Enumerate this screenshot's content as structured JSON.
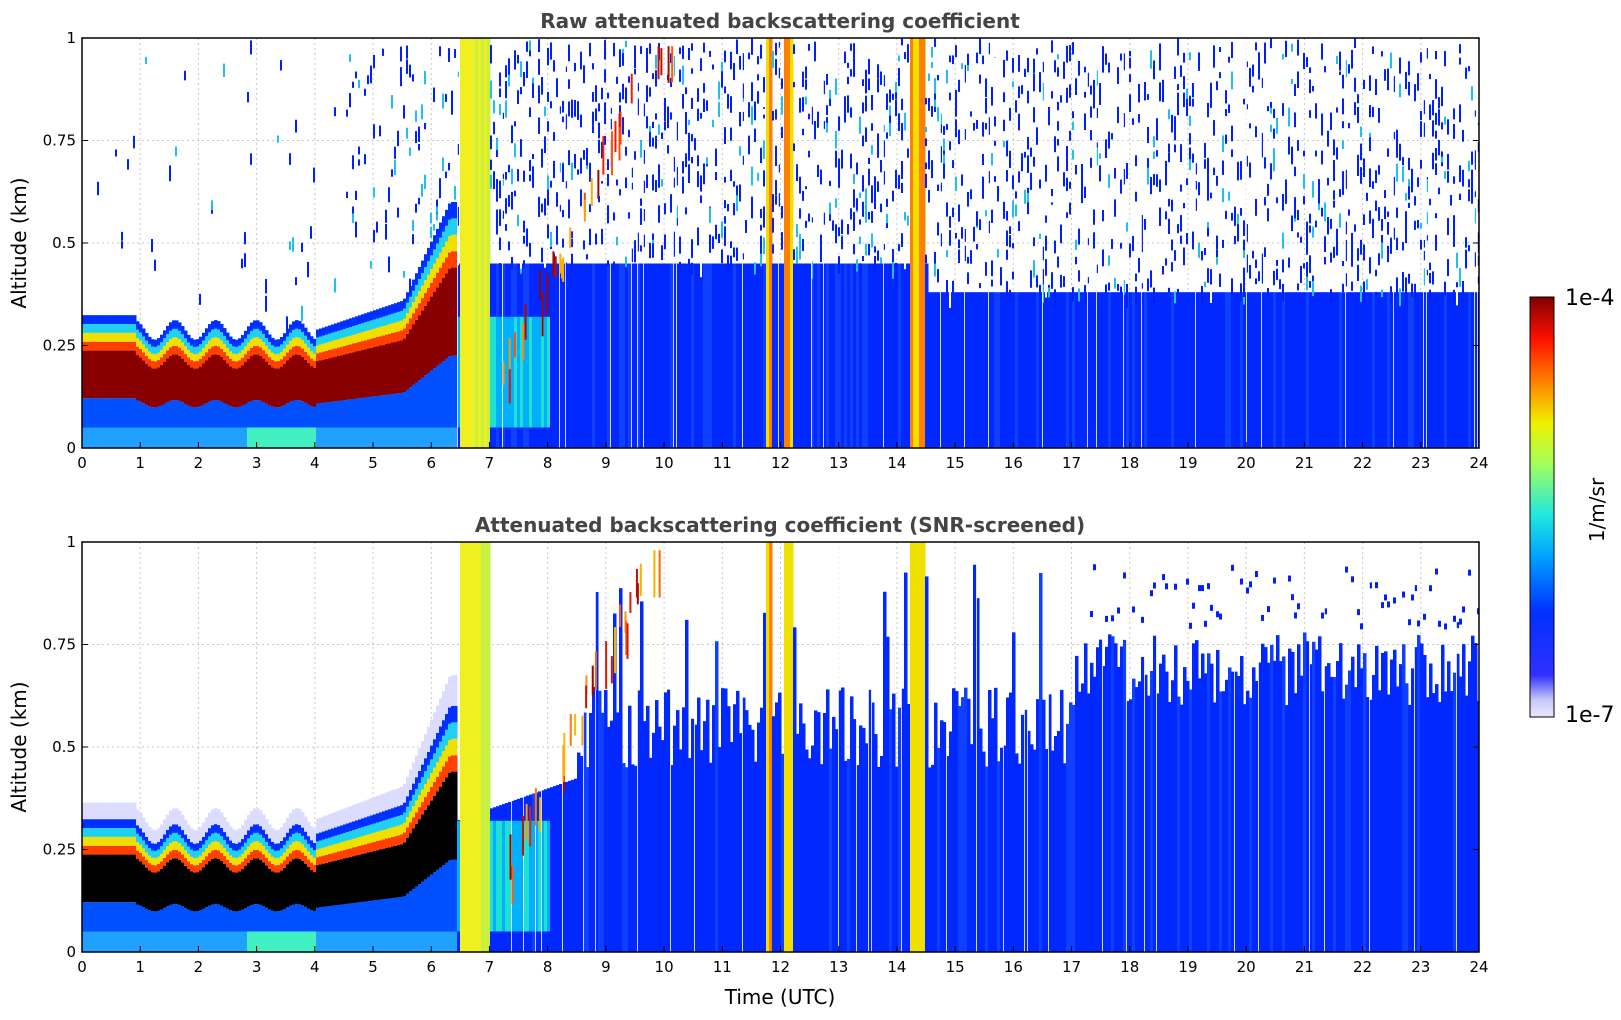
{
  "chart_data": [
    {
      "type": "heatmap",
      "title": "Raw attenuated backscattering coefficient",
      "xlabel": "",
      "ylabel": "Altitude (km)",
      "xlim": [
        0,
        24
      ],
      "ylim": [
        0,
        1
      ],
      "x_ticks": [
        "0",
        "1",
        "2",
        "3",
        "4",
        "5",
        "6",
        "7",
        "8",
        "9",
        "10",
        "11",
        "12",
        "13",
        "14",
        "15",
        "16",
        "17",
        "18",
        "19",
        "20",
        "21",
        "22",
        "23",
        "24"
      ],
      "y_ticks": [
        "0",
        "0.25",
        "0.5",
        "0.75",
        "1"
      ],
      "grid": true,
      "screened": false,
      "boundary_layer_top_km": [
        {
          "t": 0,
          "h": 0.25
        },
        {
          "t": 1,
          "h": 0.26
        },
        {
          "t": 2,
          "h": 0.24
        },
        {
          "t": 3,
          "h": 0.22
        },
        {
          "t": 4,
          "h": 0.22
        },
        {
          "t": 5,
          "h": 0.26
        },
        {
          "t": 5.5,
          "h": 0.3
        },
        {
          "t": 6,
          "h": 0.42
        },
        {
          "t": 6.3,
          "h": 0.5
        }
      ],
      "rain_shafts_utc": [
        [
          6.45,
          7.0
        ],
        [
          11.75,
          11.85
        ],
        [
          12.05,
          12.2
        ],
        [
          14.2,
          14.45
        ]
      ]
    },
    {
      "type": "heatmap",
      "title": "Attenuated backscattering coefficient (SNR-screened)",
      "xlabel": "Time (UTC)",
      "ylabel": "Altitude (km)",
      "xlim": [
        0,
        24
      ],
      "ylim": [
        0,
        1
      ],
      "x_ticks": [
        "0",
        "1",
        "2",
        "3",
        "4",
        "5",
        "6",
        "7",
        "8",
        "9",
        "10",
        "11",
        "12",
        "13",
        "14",
        "15",
        "16",
        "17",
        "18",
        "19",
        "20",
        "21",
        "22",
        "23",
        "24"
      ],
      "y_ticks": [
        "0",
        "0.25",
        "0.5",
        "0.75",
        "1"
      ],
      "grid": true,
      "screened": true,
      "rain_shafts_utc": [
        [
          6.45,
          7.0
        ],
        [
          11.75,
          11.85
        ],
        [
          12.05,
          12.2
        ],
        [
          14.2,
          14.45
        ]
      ]
    }
  ],
  "colorbar": {
    "max_label": "1e-4",
    "min_label": "1e-7",
    "unit_label": "1/m/sr",
    "scale": "log",
    "colormap": "jet"
  }
}
